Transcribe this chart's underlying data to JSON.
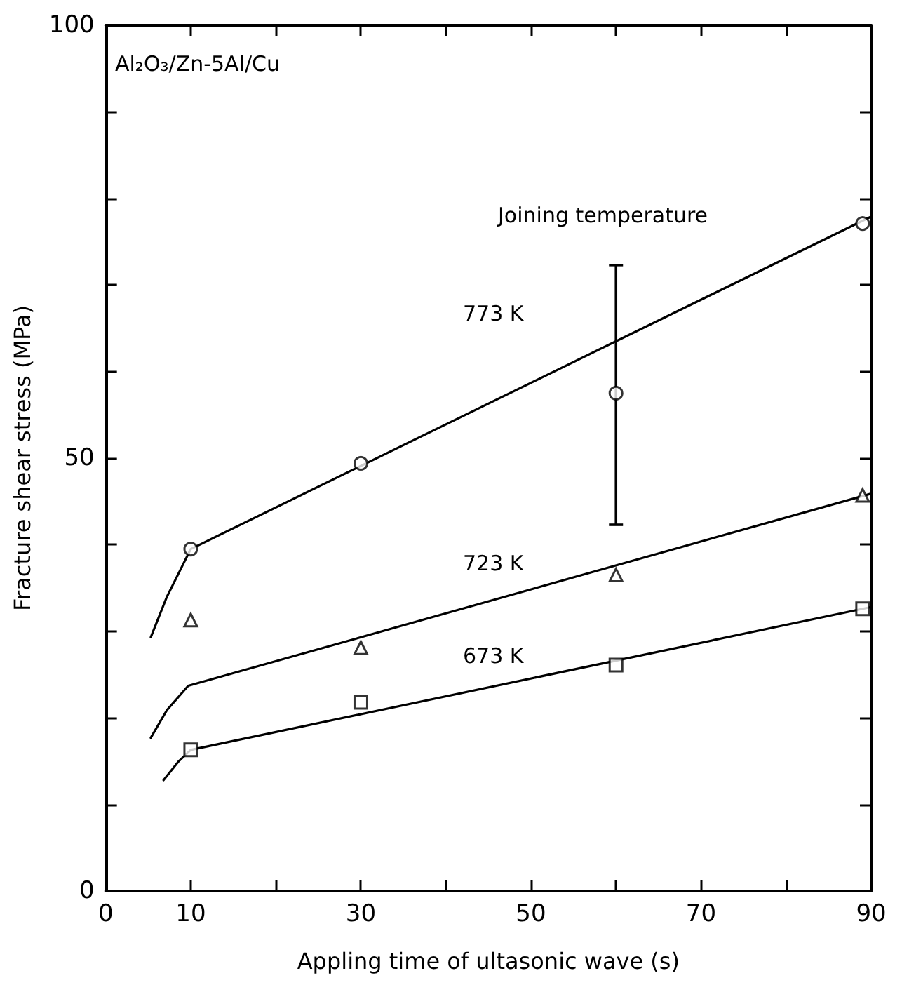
{
  "chart_data": {
    "type": "scatter",
    "xlabel": "Appling time of ultasonic wave (s)",
    "ylabel": "Fracture shear stress (MPa)",
    "xlim": [
      0,
      90
    ],
    "ylim": [
      0,
      100
    ],
    "xticks": [
      0,
      10,
      {
        "value": 20,
        "label": null
      },
      30,
      {
        "value": 40,
        "label": null
      },
      50,
      {
        "value": 60,
        "label": null
      },
      70,
      {
        "value": 80,
        "label": null
      },
      90
    ],
    "yticks": [
      0,
      {
        "value": 10,
        "label": null
      },
      {
        "value": 20,
        "label": null
      },
      {
        "value": 30,
        "label": null
      },
      {
        "value": 40,
        "label": null
      },
      50,
      {
        "value": 60,
        "label": null
      },
      {
        "value": 70,
        "label": null
      },
      {
        "value": 80,
        "label": null
      },
      {
        "value": 90,
        "label": null
      },
      100
    ],
    "grid": false,
    "series": [
      {
        "color": "#000000",
        "marker": "circle",
        "x": [
          10,
          30,
          60,
          89
        ],
        "values": [
          39.5,
          49.4,
          57.5,
          77.1
        ],
        "errors": [
          null,
          null,
          [
            42.3,
            72.3
          ],
          null
        ]
      },
      {
        "color": "#000000",
        "marker": "triangle",
        "x": [
          10,
          30,
          60,
          89
        ],
        "values": [
          31.3,
          28.1,
          36.5,
          45.7
        ]
      },
      {
        "color": "#000000",
        "marker": "square",
        "x": [
          10,
          30,
          60,
          89
        ],
        "values": [
          16.3,
          21.8,
          26.1,
          32.6
        ]
      },
      {
        "type": "line",
        "color": "#000000",
        "marker": "none",
        "x": [
          5.3,
          7.2,
          10,
          90
        ],
        "values": [
          29.3,
          34,
          39.5,
          77.9
        ]
      },
      {
        "type": "line",
        "color": "#000000",
        "marker": "none",
        "x": [
          5.3,
          7.2,
          9.7,
          90
        ],
        "values": [
          17.7,
          20.9,
          23.7,
          45.9
        ]
      },
      {
        "type": "line",
        "color": "#000000",
        "marker": "none",
        "x": [
          6.8,
          8.5,
          10,
          90
        ],
        "values": [
          12.8,
          14.9,
          16.3,
          32.8
        ]
      }
    ],
    "annotations": [
      "Al₂O₃/Zn-5Al/Cu",
      "Joining temperature",
      "773 K",
      "723 K",
      "673 K"
    ]
  }
}
